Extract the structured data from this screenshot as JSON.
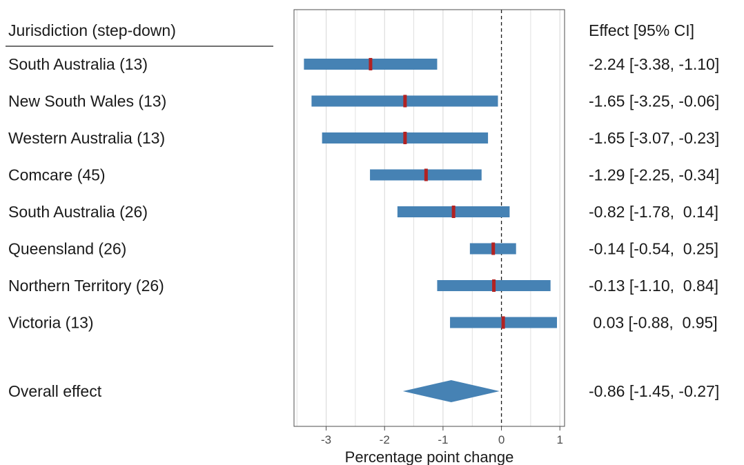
{
  "chart_data": {
    "type": "forest",
    "header": {
      "left": "Jurisdiction (step-down)",
      "right": "Effect [95% CI]"
    },
    "xlabel": "Percentage point change",
    "xlim": [
      -3.55,
      1.08
    ],
    "xticks": [
      -3,
      -2,
      -1,
      0,
      1
    ],
    "xtick_labels": [
      "-3",
      "-2",
      "-1",
      "0",
      "1"
    ],
    "grid": "vertical",
    "reference_line": 0,
    "rows": [
      {
        "label": "South Australia (13)",
        "estimate": -2.24,
        "lower": -3.38,
        "upper": -1.1,
        "effect_text": "-2.24 [-3.38, -1.10]"
      },
      {
        "label": "New South Wales (13)",
        "estimate": -1.65,
        "lower": -3.25,
        "upper": -0.06,
        "effect_text": "-1.65 [-3.25, -0.06]"
      },
      {
        "label": "Western Australia (13)",
        "estimate": -1.65,
        "lower": -3.07,
        "upper": -0.23,
        "effect_text": "-1.65 [-3.07, -0.23]"
      },
      {
        "label": "Comcare (45)",
        "estimate": -1.29,
        "lower": -2.25,
        "upper": -0.34,
        "effect_text": "-1.29 [-2.25, -0.34]"
      },
      {
        "label": "South Australia (26)",
        "estimate": -0.82,
        "lower": -1.78,
        "upper": 0.14,
        "effect_text": "-0.82 [-1.78,  0.14]"
      },
      {
        "label": "Queensland (26)",
        "estimate": -0.14,
        "lower": -0.54,
        "upper": 0.25,
        "effect_text": "-0.14 [-0.54,  0.25]"
      },
      {
        "label": "Northern Territory (26)",
        "estimate": -0.13,
        "lower": -1.1,
        "upper": 0.84,
        "effect_text": "-0.13 [-1.10,  0.84]"
      },
      {
        "label": "Victoria (13)",
        "estimate": 0.03,
        "lower": -0.88,
        "upper": 0.95,
        "effect_text": " 0.03 [-0.88,  0.95]"
      }
    ],
    "overall": {
      "label": "Overall effect",
      "estimate": -0.86,
      "lower": -1.45,
      "upper": -0.27,
      "effect_text": "-0.86 [-1.45, -0.27]"
    },
    "colors": {
      "ci_bar": "#4682b4",
      "point_estimate": "#b22222",
      "diamond": "#4682b4",
      "grid": "#d9d9d9",
      "panel_border": "#4d4d4d",
      "reference_line": "#1a1a1a"
    }
  }
}
